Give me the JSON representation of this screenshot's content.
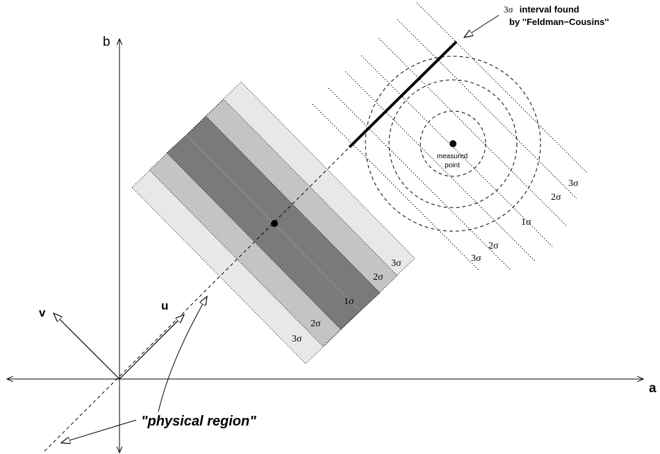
{
  "axes": {
    "a_label": "a",
    "b_label": "b",
    "u_label": "u",
    "v_label": "v"
  },
  "band_labels": {
    "left_lower": [
      "3σ",
      "2σ",
      "1σ"
    ],
    "left_upper": [
      "2σ",
      "3σ"
    ]
  },
  "right_labels": [
    "3σ",
    "2σ",
    "1σ",
    "2σ",
    "3σ"
  ],
  "measured_point": {
    "line1": "measured",
    "line2": "point"
  },
  "interval_annotation": {
    "prefix": "3σ",
    "line1": "interval found",
    "line2": "by ''Feldman−Cousins''"
  },
  "physical_region_label": "\"physical region\"",
  "colors": {
    "band_1sigma": "#7a7a7a",
    "band_2sigma": "#c4c4c4",
    "band_3sigma": "#e8e8e8",
    "ink": "#000000"
  }
}
